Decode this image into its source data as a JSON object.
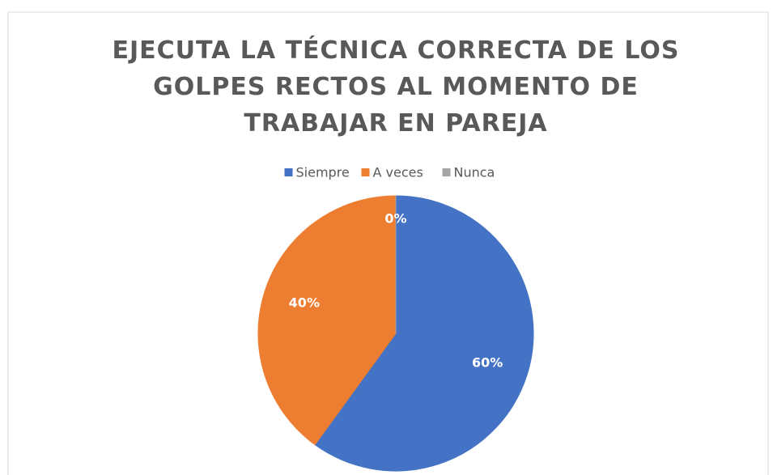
{
  "chart_data": {
    "type": "pie",
    "title": "EJECUTA LA TÉCNICA CORRECTA DE LOS GOLPES RECTOS AL MOMENTO DE TRABAJAR EN PAREJA",
    "categories": [
      "Siempre",
      "A veces",
      "Nunca"
    ],
    "values": [
      60,
      40,
      0
    ],
    "value_labels": [
      "60%",
      "40%",
      "0%"
    ],
    "colors": [
      "#4472c4",
      "#ed7d31",
      "#a5a5a5"
    ],
    "legend": "top"
  }
}
